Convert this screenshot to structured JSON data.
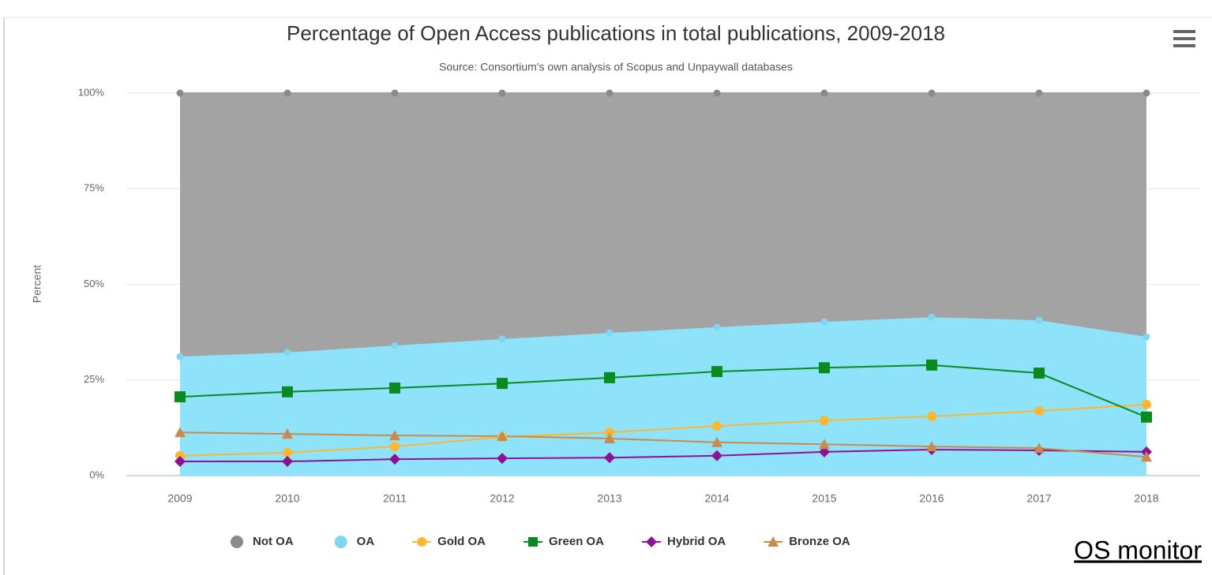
{
  "chart_data": {
    "type": "area",
    "title": "Percentage of Open Access publications in total publications, 2009-2018",
    "subtitle": "Source: Consortium's own analysis of Scopus and Unpaywall databases",
    "y_label": "Percent",
    "annotation": "OS monitor",
    "categories": [
      "2009",
      "2010",
      "2011",
      "2012",
      "2013",
      "2014",
      "2015",
      "2016",
      "2017",
      "2018"
    ],
    "ylim": [
      0,
      100
    ],
    "yticks": [
      {
        "value": 0,
        "label": "0%"
      },
      {
        "value": 25,
        "label": "25%"
      },
      {
        "value": 50,
        "label": "50%"
      },
      {
        "value": 75,
        "label": "75%"
      },
      {
        "value": 100,
        "label": "100%"
      }
    ],
    "grid": true,
    "legend": "bottom",
    "series": [
      {
        "name": "Not OA",
        "type": "area",
        "stacked": true,
        "marker": "circle",
        "color": "#a3a3a3",
        "values": [
          68.9,
          67.8,
          66.0,
          64.3,
          62.7,
          61.2,
          59.8,
          58.6,
          59.4,
          63.7
        ]
      },
      {
        "name": "OA",
        "type": "area",
        "stacked": true,
        "marker": "circle",
        "color": "#8ee2f9",
        "values": [
          31.1,
          32.2,
          34.0,
          35.7,
          37.3,
          38.8,
          40.2,
          41.4,
          40.6,
          36.3
        ]
      },
      {
        "name": "Gold OA",
        "type": "line",
        "marker": "circle",
        "color": "#fbb731",
        "values": [
          5.2,
          6.0,
          7.6,
          10.1,
          11.3,
          13.0,
          14.4,
          15.5,
          16.9,
          18.6
        ]
      },
      {
        "name": "Green OA",
        "type": "line",
        "marker": "square",
        "color": "#0b8a1f",
        "values": [
          20.6,
          21.9,
          22.9,
          24.1,
          25.6,
          27.2,
          28.2,
          28.9,
          26.8,
          15.3
        ]
      },
      {
        "name": "Hybrid OA",
        "type": "line",
        "marker": "diamond",
        "color": "#8e1096",
        "values": [
          3.7,
          3.7,
          4.3,
          4.5,
          4.7,
          5.2,
          6.2,
          6.8,
          6.6,
          6.2
        ]
      },
      {
        "name": "Bronze OA",
        "type": "line",
        "marker": "triangle",
        "color": "#c98b4c",
        "values": [
          11.3,
          10.9,
          10.5,
          10.3,
          9.7,
          8.7,
          8.2,
          7.6,
          7.2,
          4.9
        ]
      }
    ]
  }
}
